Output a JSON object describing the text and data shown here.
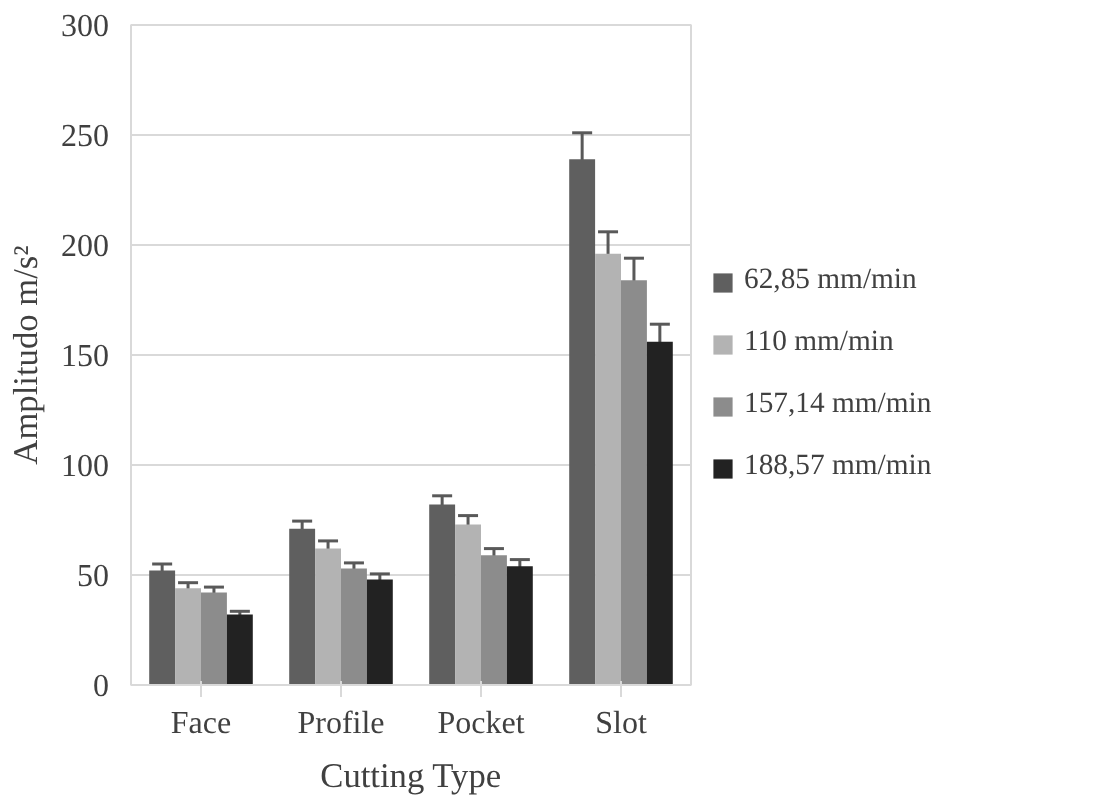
{
  "chart_data": {
    "type": "bar",
    "xlabel": "Cutting Type",
    "ylabel": "Amplitudo m/s²",
    "categories": [
      "Face",
      "Profile",
      "Pocket",
      "Slot"
    ],
    "series": [
      {
        "name": "62,85 mm/min",
        "color": "#5f5f5f",
        "values": [
          52,
          71,
          82,
          239
        ],
        "errors": [
          3,
          3.5,
          4,
          12
        ]
      },
      {
        "name": "110 mm/min",
        "color": "#b3b3b3",
        "values": [
          44,
          62,
          73,
          196
        ],
        "errors": [
          2.5,
          3.5,
          4,
          10
        ]
      },
      {
        "name": "157,14 mm/min",
        "color": "#8c8c8c",
        "values": [
          42,
          53,
          59,
          184
        ],
        "errors": [
          2.5,
          2.5,
          3,
          10
        ]
      },
      {
        "name": "188,57 mm/min",
        "color": "#222222",
        "values": [
          32,
          48,
          54,
          156
        ],
        "errors": [
          1.5,
          2.5,
          3,
          8
        ]
      }
    ],
    "ylim": [
      0,
      300
    ],
    "yticks": [
      0,
      50,
      100,
      150,
      200,
      250,
      300
    ],
    "grid": "y",
    "legend": "right"
  }
}
